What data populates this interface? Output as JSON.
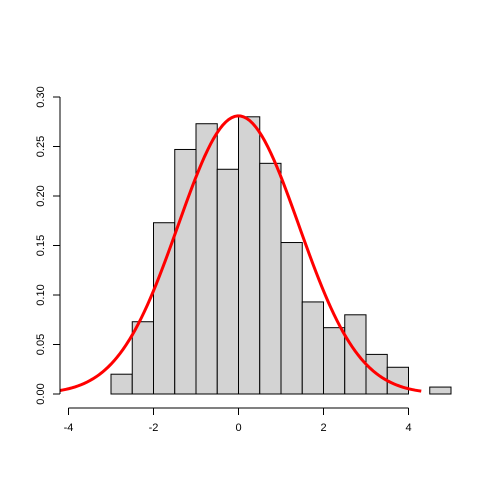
{
  "chart_data": {
    "type": "bar",
    "subtype": "histogram",
    "bins": [
      {
        "x0": -3.0,
        "x1": -2.5,
        "density": 0.02
      },
      {
        "x0": -2.5,
        "x1": -2.0,
        "density": 0.073
      },
      {
        "x0": -2.0,
        "x1": -1.5,
        "density": 0.173
      },
      {
        "x0": -1.5,
        "x1": -1.0,
        "density": 0.247
      },
      {
        "x0": -1.0,
        "x1": -0.5,
        "density": 0.273
      },
      {
        "x0": -0.5,
        "x1": 0.0,
        "density": 0.227
      },
      {
        "x0": 0.0,
        "x1": 0.5,
        "density": 0.28
      },
      {
        "x0": 0.5,
        "x1": 1.0,
        "density": 0.233
      },
      {
        "x0": 1.0,
        "x1": 1.5,
        "density": 0.153
      },
      {
        "x0": 1.5,
        "x1": 2.0,
        "density": 0.093
      },
      {
        "x0": 2.0,
        "x1": 2.5,
        "density": 0.067
      },
      {
        "x0": 2.5,
        "x1": 3.0,
        "density": 0.08
      },
      {
        "x0": 3.0,
        "x1": 3.5,
        "density": 0.04
      },
      {
        "x0": 3.5,
        "x1": 4.0,
        "density": 0.027
      },
      {
        "x0": 4.0,
        "x1": 4.5,
        "density": 0.0
      },
      {
        "x0": 4.5,
        "x1": 5.0,
        "density": 0.007
      }
    ],
    "curve": {
      "type": "line",
      "name": "",
      "color": "#ff0000",
      "mean": 0,
      "sd": 1.42,
      "x_range": [
        -4.2,
        4.3
      ]
    },
    "xlim": [
      -4.2,
      5.0
    ],
    "ylim": [
      0,
      0.3
    ],
    "x_ticks": [
      "-4",
      "-2",
      "0",
      "2",
      "4"
    ],
    "x_tick_values": [
      -4,
      -2,
      0,
      2,
      4
    ],
    "y_ticks": [
      "0.00",
      "0.05",
      "0.10",
      "0.15",
      "0.20",
      "0.25",
      "0.30"
    ],
    "y_tick_values": [
      0,
      0.05,
      0.1,
      0.15,
      0.2,
      0.25,
      0.3
    ],
    "bar_fill": "#d3d3d3",
    "bar_stroke": "#000000",
    "title": "",
    "xlabel": "",
    "ylabel": "",
    "grid": false
  }
}
